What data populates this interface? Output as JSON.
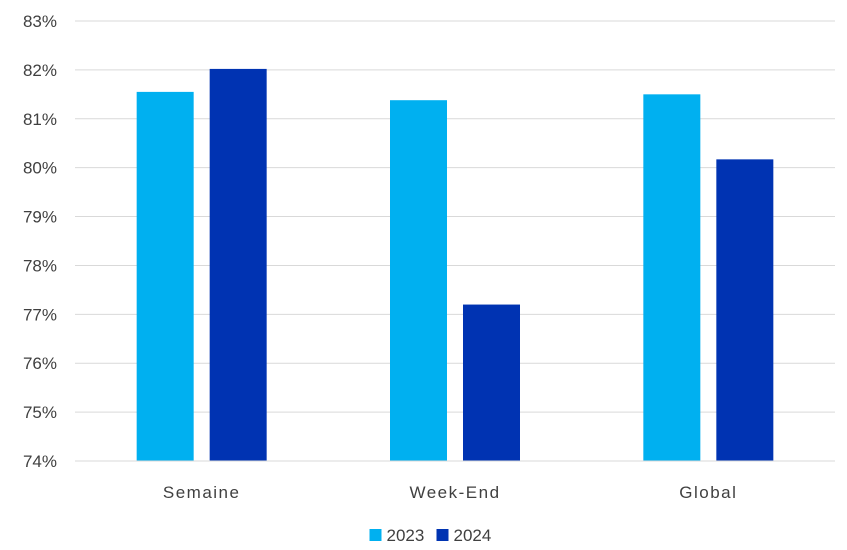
{
  "chart_data": {
    "type": "bar",
    "categories": [
      "Semaine",
      "Week-End",
      "Global"
    ],
    "series": [
      {
        "name": "2023",
        "values": [
          81.55,
          81.38,
          81.5
        ],
        "color": "#00B0F0"
      },
      {
        "name": "2024",
        "values": [
          82.02,
          77.2,
          80.17
        ],
        "color": "#0033B2"
      }
    ],
    "y_ticks": [
      "74%",
      "75%",
      "76%",
      "77%",
      "78%",
      "79%",
      "80%",
      "81%",
      "82%",
      "83%"
    ],
    "ylim": [
      74,
      83
    ],
    "grid": true,
    "legend_position": "bottom"
  }
}
